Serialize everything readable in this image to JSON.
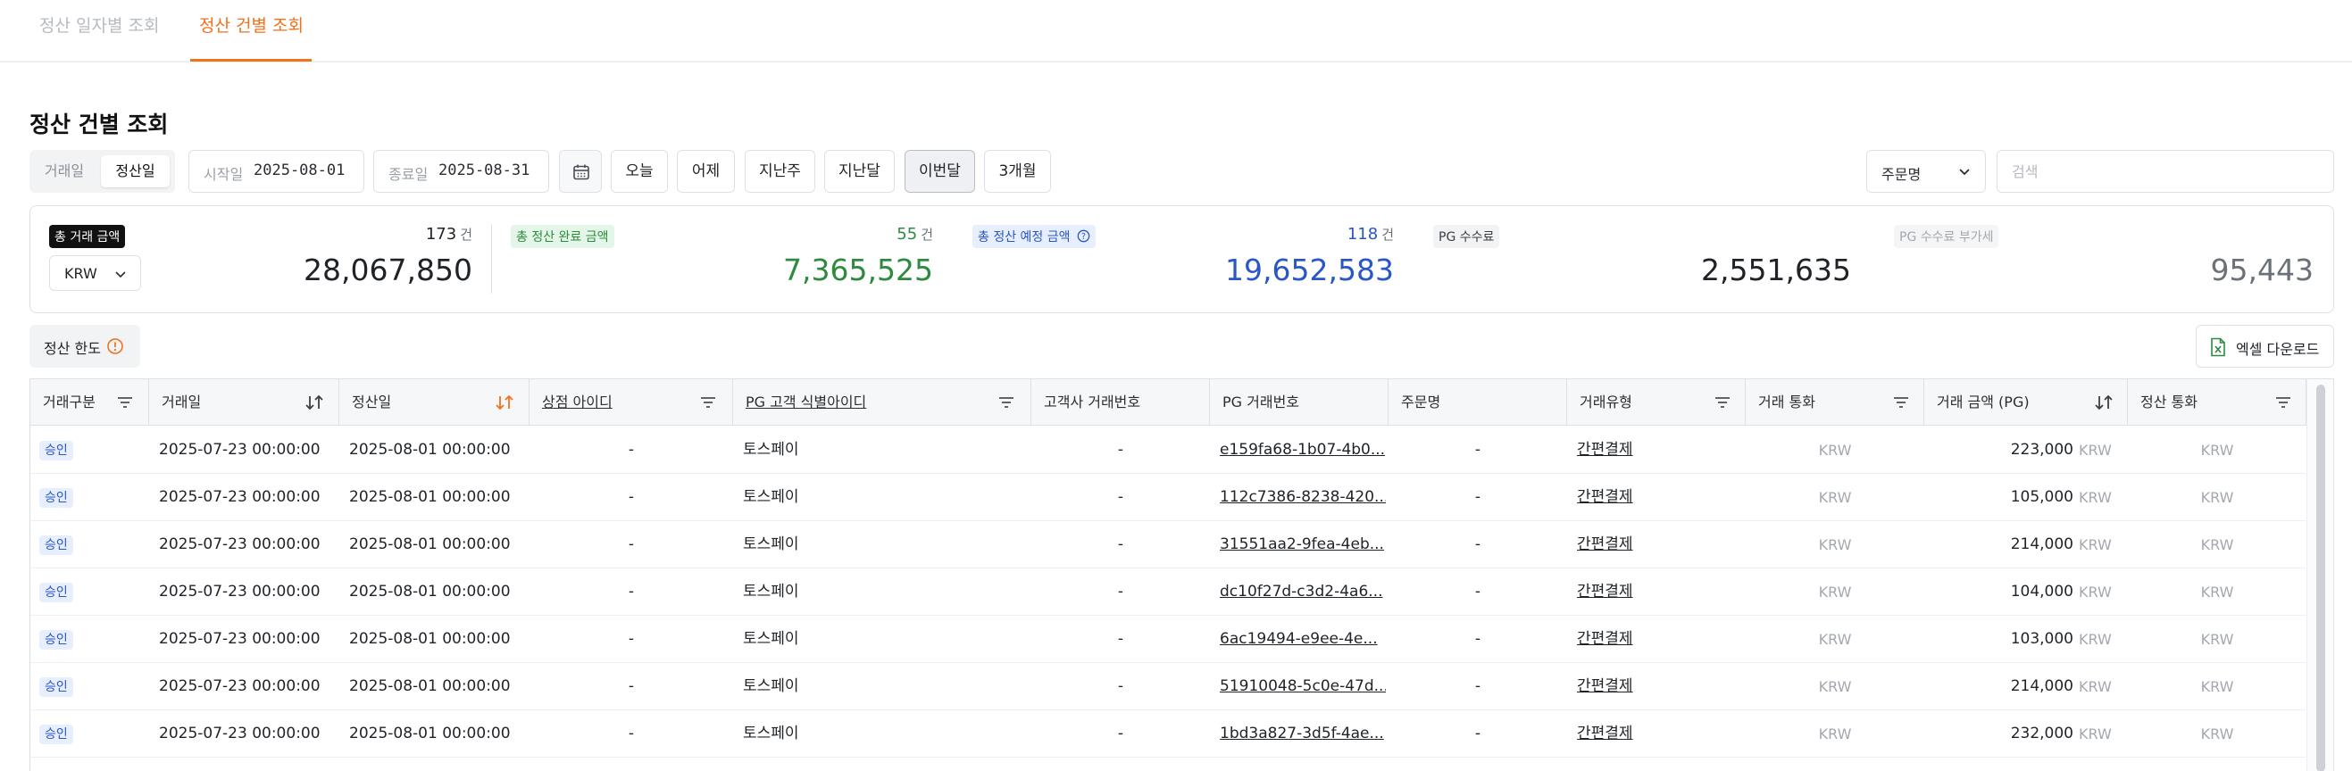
{
  "tabs": [
    {
      "label": "정산 일자별 조회",
      "active": false
    },
    {
      "label": "정산 건별 조회",
      "active": true
    }
  ],
  "page_title": "정산 건별 조회",
  "filter": {
    "date_type_options": [
      "거래일",
      "정산일"
    ],
    "date_type_selected": "정산일",
    "start_label": "시작일",
    "start_value": "2025-08-01",
    "end_label": "종료일",
    "end_value": "2025-08-31",
    "quick_ranges": [
      "오늘",
      "어제",
      "지난주",
      "지난달",
      "이번달",
      "3개월"
    ],
    "quick_selected": "이번달",
    "search_field": "주문명",
    "search_placeholder": "검색"
  },
  "summary": {
    "currency": "KRW",
    "total": {
      "label": "총 거래 금액",
      "count": "173",
      "unit": "건",
      "amount": "28,067,850"
    },
    "completed": {
      "label": "총 정산 완료 금액",
      "count": "55",
      "unit": "건",
      "amount": "7,365,525"
    },
    "scheduled": {
      "label": "총 정산 예정 금액",
      "count": "118",
      "unit": "건",
      "amount": "19,652,583"
    },
    "pg_fee": {
      "label": "PG 수수료",
      "amount": "2,551,635"
    },
    "pg_fee_vat": {
      "label": "PG 수수료 부가세",
      "amount": "95,443"
    }
  },
  "toolbar": {
    "limit_label": "정산 한도",
    "excel_label": "엑셀 다운로드"
  },
  "table": {
    "columns": [
      "거래구분",
      "거래일",
      "정산일",
      "상점 아이디",
      "PG 고객 식별아이디",
      "고객사 거래번호",
      "PG 거래번호",
      "주문명",
      "거래유형",
      "거래 통화",
      "거래 금액 (PG)",
      "정산 통화"
    ],
    "rows": [
      {
        "type": "승인",
        "tx_date": "2025-07-23 00:00:00",
        "settle_date": "2025-08-01 00:00:00",
        "store_id": "-",
        "pg_customer": "토스페이",
        "merchant_tx": "-",
        "pg_tx": "e159fa68-1b07-4b0...",
        "order_name": "-",
        "tx_kind": "간편결제",
        "tx_currency": "KRW",
        "amount": "223,000",
        "amount_cur": "KRW",
        "settle_currency": "KRW"
      },
      {
        "type": "승인",
        "tx_date": "2025-07-23 00:00:00",
        "settle_date": "2025-08-01 00:00:00",
        "store_id": "-",
        "pg_customer": "토스페이",
        "merchant_tx": "-",
        "pg_tx": "112c7386-8238-420...",
        "order_name": "-",
        "tx_kind": "간편결제",
        "tx_currency": "KRW",
        "amount": "105,000",
        "amount_cur": "KRW",
        "settle_currency": "KRW"
      },
      {
        "type": "승인",
        "tx_date": "2025-07-23 00:00:00",
        "settle_date": "2025-08-01 00:00:00",
        "store_id": "-",
        "pg_customer": "토스페이",
        "merchant_tx": "-",
        "pg_tx": "31551aa2-9fea-4eb...",
        "order_name": "-",
        "tx_kind": "간편결제",
        "tx_currency": "KRW",
        "amount": "214,000",
        "amount_cur": "KRW",
        "settle_currency": "KRW"
      },
      {
        "type": "승인",
        "tx_date": "2025-07-23 00:00:00",
        "settle_date": "2025-08-01 00:00:00",
        "store_id": "-",
        "pg_customer": "토스페이",
        "merchant_tx": "-",
        "pg_tx": "dc10f27d-c3d2-4a6...",
        "order_name": "-",
        "tx_kind": "간편결제",
        "tx_currency": "KRW",
        "amount": "104,000",
        "amount_cur": "KRW",
        "settle_currency": "KRW"
      },
      {
        "type": "승인",
        "tx_date": "2025-07-23 00:00:00",
        "settle_date": "2025-08-01 00:00:00",
        "store_id": "-",
        "pg_customer": "토스페이",
        "merchant_tx": "-",
        "pg_tx": "6ac19494-e9ee-4e...",
        "order_name": "-",
        "tx_kind": "간편결제",
        "tx_currency": "KRW",
        "amount": "103,000",
        "amount_cur": "KRW",
        "settle_currency": "KRW"
      },
      {
        "type": "승인",
        "tx_date": "2025-07-23 00:00:00",
        "settle_date": "2025-08-01 00:00:00",
        "store_id": "-",
        "pg_customer": "토스페이",
        "merchant_tx": "-",
        "pg_tx": "51910048-5c0e-47d...",
        "order_name": "-",
        "tx_kind": "간편결제",
        "tx_currency": "KRW",
        "amount": "214,000",
        "amount_cur": "KRW",
        "settle_currency": "KRW"
      },
      {
        "type": "승인",
        "tx_date": "2025-07-23 00:00:00",
        "settle_date": "2025-08-01 00:00:00",
        "store_id": "-",
        "pg_customer": "토스페이",
        "merchant_tx": "-",
        "pg_tx": "1bd3a827-3d5f-4ae...",
        "order_name": "-",
        "tx_kind": "간편결제",
        "tx_currency": "KRW",
        "amount": "232,000",
        "amount_cur": "KRW",
        "settle_currency": "KRW"
      }
    ]
  },
  "colors": {
    "accent": "#f2711c",
    "completed": "#2d8a3e",
    "scheduled": "#2a56c6",
    "fee_vat": "#6b7178"
  },
  "icons": {
    "filter": "filter-icon",
    "sort": "sort-icon",
    "calendar": "calendar-icon",
    "chevron": "chevron-down-icon",
    "info": "info-icon",
    "excel": "excel-file-icon"
  }
}
